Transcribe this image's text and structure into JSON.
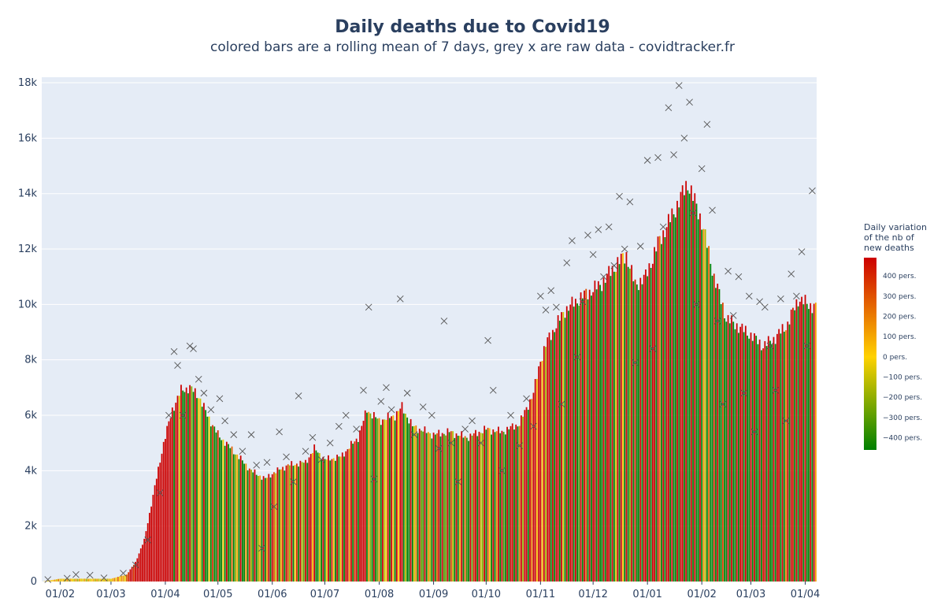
{
  "chart_data": {
    "type": "bar",
    "title": "Daily deaths due to Covid19",
    "subtitle": "colored bars are a rolling mean of 7 days, grey x are raw data - covidtracker.fr",
    "xlabel": "",
    "ylabel": "",
    "ylim": [
      0,
      18200
    ],
    "x_start": "2020-01-22",
    "x_end": "2021-04-07",
    "x_ticks": [
      "01/02",
      "01/03",
      "01/04",
      "01/05",
      "01/06",
      "01/07",
      "01/08",
      "01/09",
      "01/10",
      "01/11",
      "01/12",
      "01/01",
      "01/02",
      "01/03",
      "01/04"
    ],
    "y_ticks": [
      0,
      2000,
      4000,
      6000,
      8000,
      10000,
      12000,
      14000,
      16000,
      18000
    ],
    "y_tick_labels": [
      "0",
      "2k",
      "4k",
      "6k",
      "8k",
      "10k",
      "12k",
      "14k",
      "16k",
      "18k"
    ],
    "rolling_mean_anchors": [
      [
        "2020-01-22",
        0
      ],
      [
        "2020-02-01",
        100
      ],
      [
        "2020-02-20",
        100
      ],
      [
        "2020-03-01",
        100
      ],
      [
        "2020-03-10",
        250
      ],
      [
        "2020-03-15",
        700
      ],
      [
        "2020-03-20",
        1500
      ],
      [
        "2020-03-25",
        3100
      ],
      [
        "2020-03-31",
        5000
      ],
      [
        "2020-04-05",
        6200
      ],
      [
        "2020-04-10",
        6900
      ],
      [
        "2020-04-15",
        7000
      ],
      [
        "2020-04-20",
        6700
      ],
      [
        "2020-04-25",
        6000
      ],
      [
        "2020-05-01",
        5300
      ],
      [
        "2020-05-10",
        4700
      ],
      [
        "2020-05-20",
        4000
      ],
      [
        "2020-05-28",
        3700
      ],
      [
        "2020-06-01",
        3900
      ],
      [
        "2020-06-10",
        4200
      ],
      [
        "2020-06-20",
        4300
      ],
      [
        "2020-06-25",
        4800
      ],
      [
        "2020-07-01",
        4400
      ],
      [
        "2020-07-10",
        4500
      ],
      [
        "2020-07-20",
        5200
      ],
      [
        "2020-07-25",
        6200
      ],
      [
        "2020-08-01",
        5800
      ],
      [
        "2020-08-10",
        6000
      ],
      [
        "2020-08-14",
        6300
      ],
      [
        "2020-08-20",
        5600
      ],
      [
        "2020-09-01",
        5300
      ],
      [
        "2020-09-10",
        5400
      ],
      [
        "2020-09-20",
        5200
      ],
      [
        "2020-10-01",
        5500
      ],
      [
        "2020-10-10",
        5400
      ],
      [
        "2020-10-20",
        5700
      ],
      [
        "2020-10-28",
        6800
      ],
      [
        "2020-11-01",
        8000
      ],
      [
        "2020-11-05",
        8700
      ],
      [
        "2020-11-15",
        9800
      ],
      [
        "2020-11-25",
        10300
      ],
      [
        "2020-12-05",
        10700
      ],
      [
        "2020-12-15",
        11500
      ],
      [
        "2020-12-20",
        11800
      ],
      [
        "2020-12-25",
        10700
      ],
      [
        "2020-12-31",
        11000
      ],
      [
        "2021-01-07",
        12200
      ],
      [
        "2021-01-15",
        13200
      ],
      [
        "2021-01-24",
        14400
      ],
      [
        "2021-02-01",
        13000
      ],
      [
        "2021-02-08",
        11000
      ],
      [
        "2021-02-15",
        9500
      ],
      [
        "2021-02-22",
        9200
      ],
      [
        "2021-03-01",
        8900
      ],
      [
        "2021-03-08",
        8500
      ],
      [
        "2021-03-15",
        8800
      ],
      [
        "2021-03-22",
        9300
      ],
      [
        "2021-03-28",
        10200
      ],
      [
        "2021-04-03",
        10000
      ],
      [
        "2021-04-07",
        9900
      ]
    ],
    "raw_data_points": [
      [
        "2020-01-25",
        70
      ],
      [
        "2020-02-05",
        120
      ],
      [
        "2020-02-10",
        250
      ],
      [
        "2020-02-18",
        230
      ],
      [
        "2020-02-26",
        130
      ],
      [
        "2020-03-08",
        300
      ],
      [
        "2020-03-15",
        600
      ],
      [
        "2020-03-22",
        1500
      ],
      [
        "2020-03-29",
        3200
      ],
      [
        "2020-04-03",
        6000
      ],
      [
        "2020-04-06",
        8300
      ],
      [
        "2020-04-08",
        7800
      ],
      [
        "2020-04-11",
        6000
      ],
      [
        "2020-04-15",
        8500
      ],
      [
        "2020-04-17",
        8400
      ],
      [
        "2020-04-20",
        7300
      ],
      [
        "2020-04-23",
        6800
      ],
      [
        "2020-04-27",
        6200
      ],
      [
        "2020-05-02",
        6600
      ],
      [
        "2020-05-05",
        5800
      ],
      [
        "2020-05-10",
        5300
      ],
      [
        "2020-05-15",
        4700
      ],
      [
        "2020-05-20",
        5300
      ],
      [
        "2020-05-23",
        4200
      ],
      [
        "2020-05-26",
        1200
      ],
      [
        "2020-05-29",
        4300
      ],
      [
        "2020-06-02",
        2700
      ],
      [
        "2020-06-05",
        5400
      ],
      [
        "2020-06-09",
        4500
      ],
      [
        "2020-06-13",
        3600
      ],
      [
        "2020-06-16",
        6700
      ],
      [
        "2020-06-20",
        4700
      ],
      [
        "2020-06-24",
        5200
      ],
      [
        "2020-06-29",
        4400
      ],
      [
        "2020-07-04",
        5000
      ],
      [
        "2020-07-09",
        5600
      ],
      [
        "2020-07-13",
        6000
      ],
      [
        "2020-07-19",
        5500
      ],
      [
        "2020-07-23",
        6900
      ],
      [
        "2020-07-26",
        9900
      ],
      [
        "2020-07-29",
        3700
      ],
      [
        "2020-08-02",
        6500
      ],
      [
        "2020-08-05",
        7000
      ],
      [
        "2020-08-08",
        6200
      ],
      [
        "2020-08-13",
        10200
      ],
      [
        "2020-08-17",
        6800
      ],
      [
        "2020-08-21",
        5300
      ],
      [
        "2020-08-26",
        6300
      ],
      [
        "2020-08-31",
        6000
      ],
      [
        "2020-09-04",
        4800
      ],
      [
        "2020-09-07",
        9400
      ],
      [
        "2020-09-11",
        5000
      ],
      [
        "2020-09-15",
        3600
      ],
      [
        "2020-09-19",
        5500
      ],
      [
        "2020-09-23",
        5800
      ],
      [
        "2020-09-28",
        5000
      ],
      [
        "2020-10-02",
        8700
      ],
      [
        "2020-10-05",
        6900
      ],
      [
        "2020-10-10",
        4000
      ],
      [
        "2020-10-15",
        6000
      ],
      [
        "2020-10-20",
        4900
      ],
      [
        "2020-10-24",
        6600
      ],
      [
        "2020-10-28",
        5600
      ],
      [
        "2020-11-01",
        10300
      ],
      [
        "2020-11-04",
        9800
      ],
      [
        "2020-11-07",
        10500
      ],
      [
        "2020-11-10",
        9900
      ],
      [
        "2020-11-13",
        6400
      ],
      [
        "2020-11-16",
        11500
      ],
      [
        "2020-11-19",
        12300
      ],
      [
        "2020-11-22",
        8100
      ],
      [
        "2020-11-25",
        10100
      ],
      [
        "2020-11-28",
        12500
      ],
      [
        "2020-12-01",
        11800
      ],
      [
        "2020-12-04",
        12700
      ],
      [
        "2020-12-07",
        11000
      ],
      [
        "2020-12-10",
        12800
      ],
      [
        "2020-12-13",
        11400
      ],
      [
        "2020-12-16",
        13900
      ],
      [
        "2020-12-19",
        12000
      ],
      [
        "2020-12-22",
        13700
      ],
      [
        "2020-12-25",
        7900
      ],
      [
        "2020-12-28",
        12100
      ],
      [
        "2021-01-01",
        15200
      ],
      [
        "2021-01-04",
        8400
      ],
      [
        "2021-01-07",
        15300
      ],
      [
        "2021-01-10",
        12800
      ],
      [
        "2021-01-13",
        17100
      ],
      [
        "2021-01-16",
        15400
      ],
      [
        "2021-01-19",
        17900
      ],
      [
        "2021-01-22",
        16000
      ],
      [
        "2021-01-25",
        17300
      ],
      [
        "2021-01-27",
        13300
      ],
      [
        "2021-01-29",
        10000
      ],
      [
        "2021-02-01",
        14900
      ],
      [
        "2021-02-04",
        16500
      ],
      [
        "2021-02-07",
        13400
      ],
      [
        "2021-02-10",
        9400
      ],
      [
        "2021-02-13",
        6400
      ],
      [
        "2021-02-16",
        11200
      ],
      [
        "2021-02-19",
        9600
      ],
      [
        "2021-02-22",
        11000
      ],
      [
        "2021-02-25",
        6800
      ],
      [
        "2021-02-28",
        10300
      ],
      [
        "2021-03-03",
        5400
      ],
      [
        "2021-03-06",
        10100
      ],
      [
        "2021-03-09",
        9900
      ],
      [
        "2021-03-12",
        8500
      ],
      [
        "2021-03-15",
        6900
      ],
      [
        "2021-03-18",
        10200
      ],
      [
        "2021-03-21",
        5800
      ],
      [
        "2021-03-24",
        11100
      ],
      [
        "2021-03-27",
        10300
      ],
      [
        "2021-03-30",
        11900
      ],
      [
        "2021-04-02",
        8500
      ],
      [
        "2021-04-05",
        14100
      ]
    ],
    "colorbar": {
      "title_lines": [
        "Daily variation",
        "of the nb of",
        "new deaths"
      ],
      "tick_values": [
        400,
        300,
        200,
        100,
        0,
        -100,
        -200,
        -300,
        -400
      ],
      "tick_labels": [
        "400 pers.",
        "300 pers.",
        "200 pers.",
        "100 pers.",
        "0 pers.",
        "−100 pers.",
        "−200 pers.",
        "−300 pers.",
        "−400 pers."
      ],
      "range": [
        -460,
        490
      ],
      "colors": [
        "#008000",
        "#ffd200",
        "#cc0000"
      ]
    },
    "grid": true,
    "plot_bgcolor": "#e5ecf6",
    "bar_color_scale": "variation",
    "marker_color": "#555555"
  }
}
